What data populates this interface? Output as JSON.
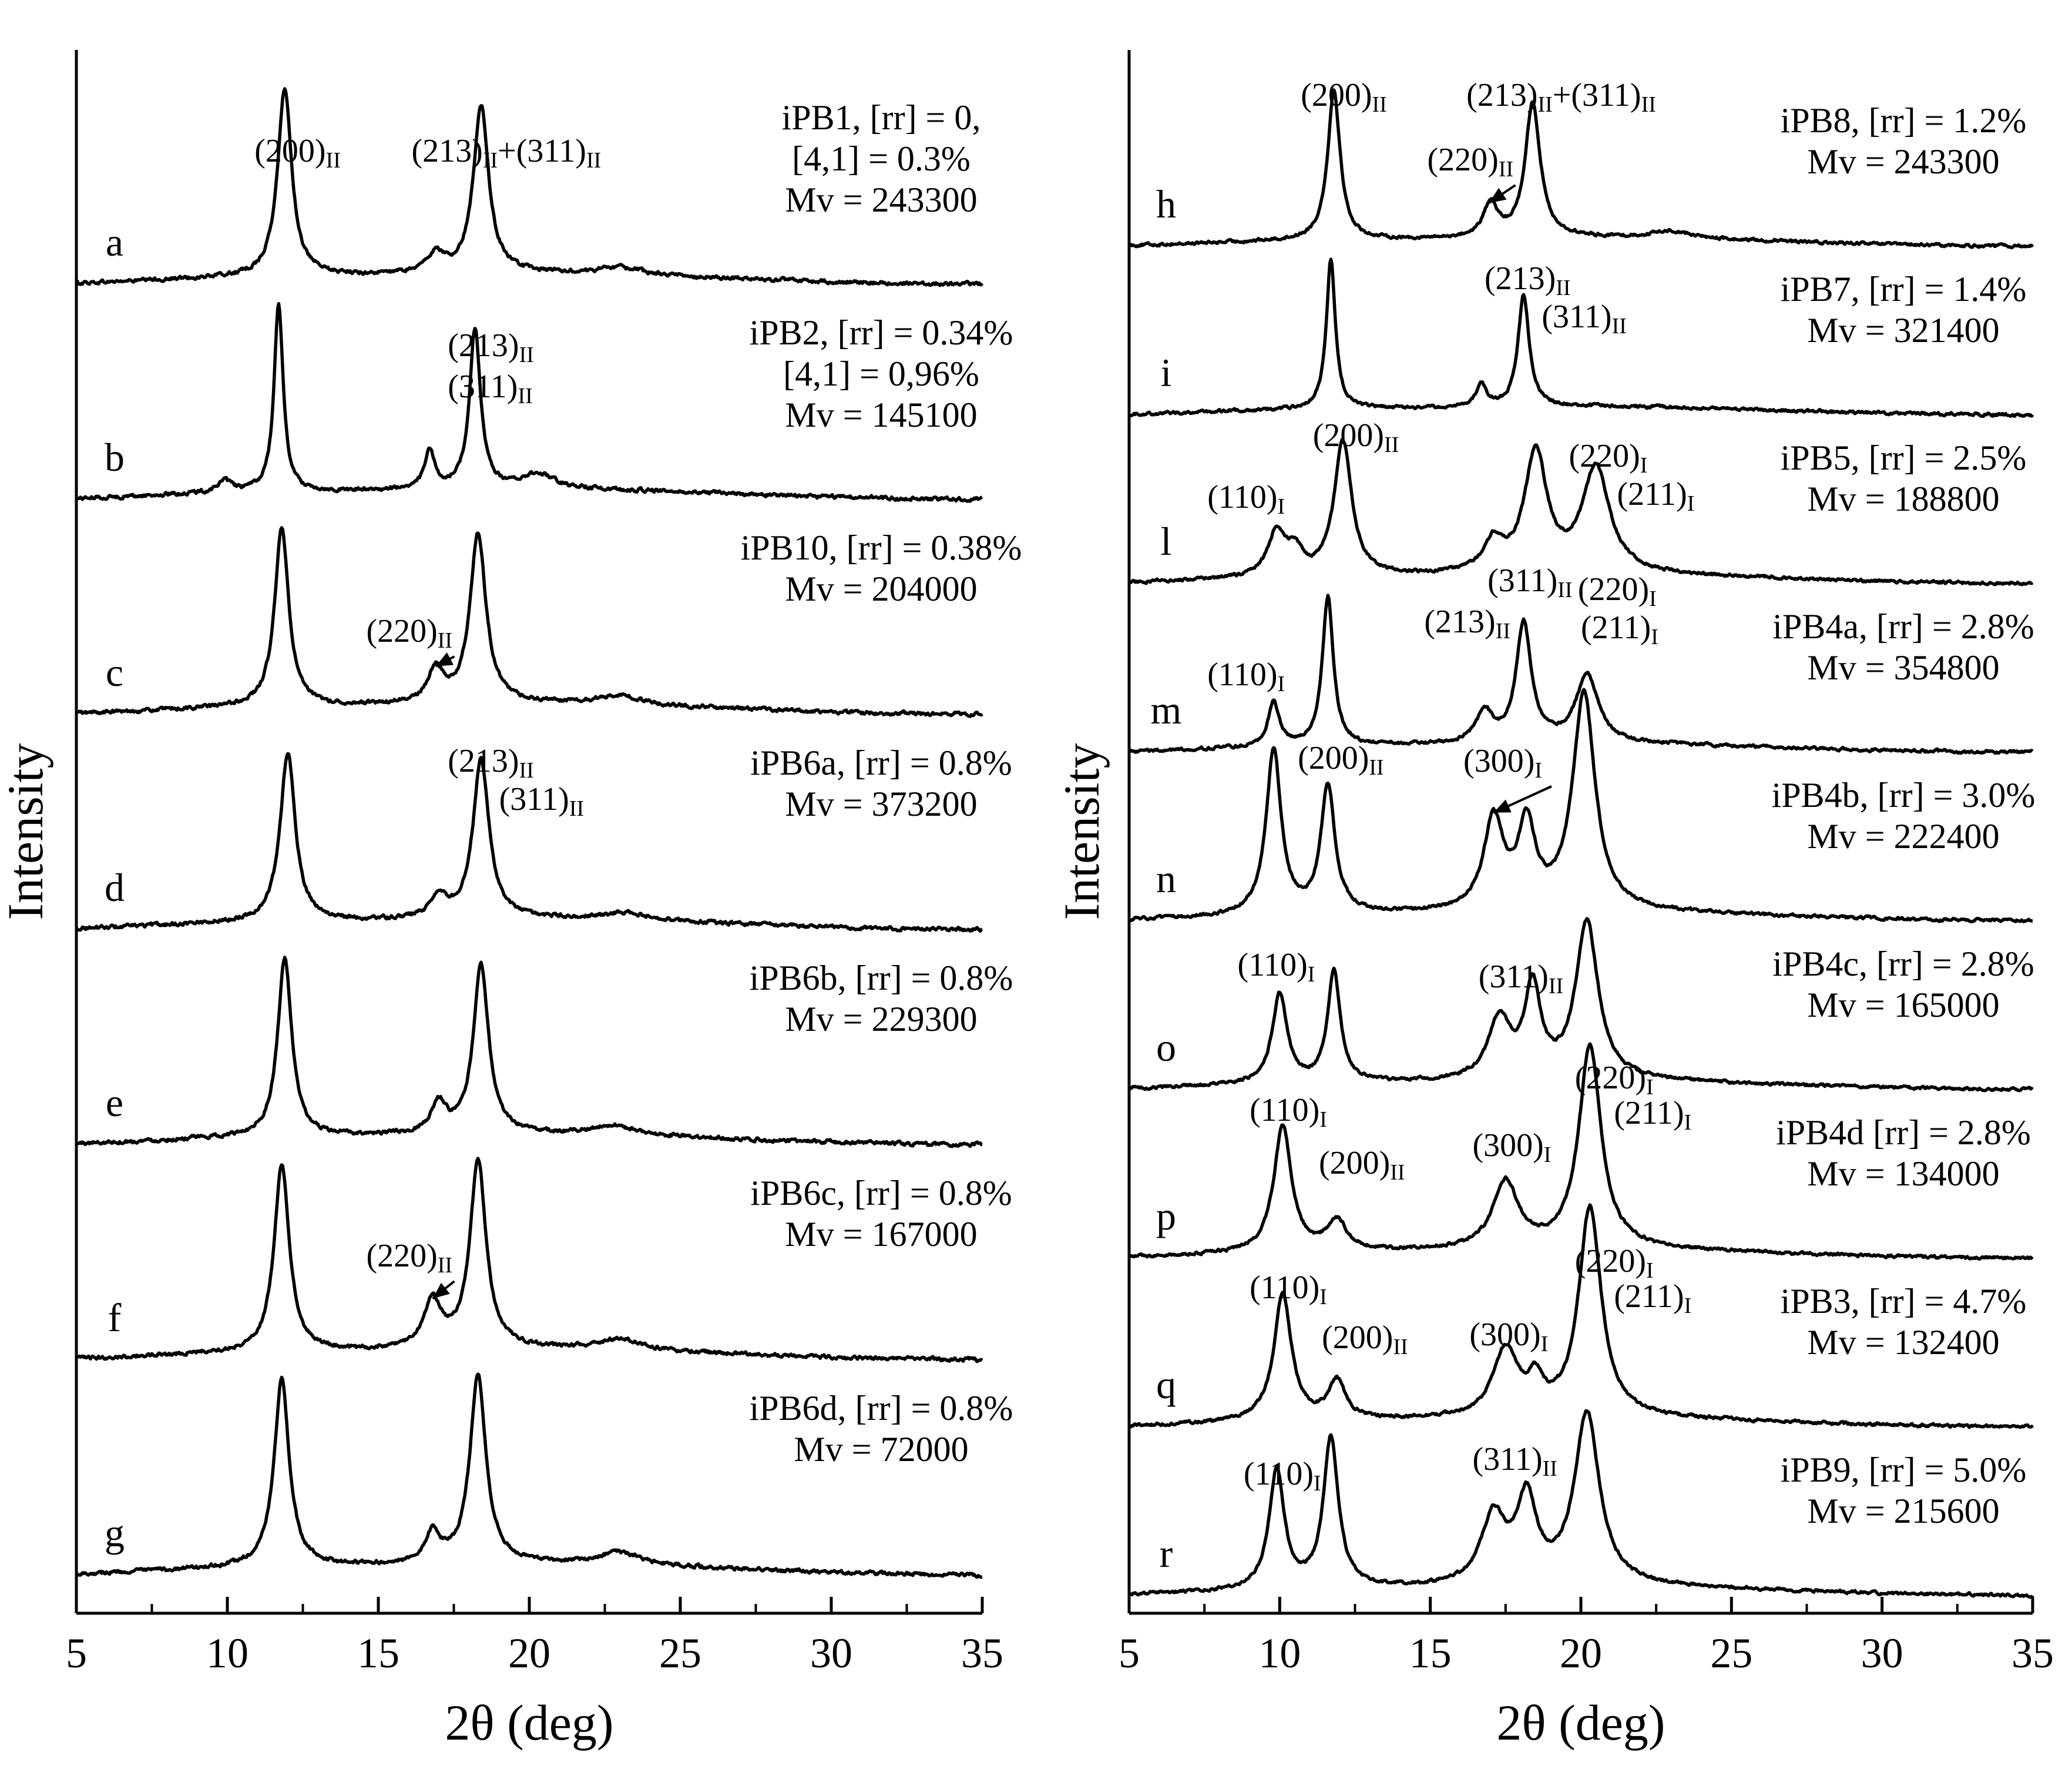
{
  "chart_data": [
    {
      "type": "line",
      "panel": "left",
      "xlabel": "2θ (deg)",
      "ylabel": "Intensity",
      "xlim": [
        5,
        35
      ],
      "xticks": [
        "5",
        "10",
        "15",
        "20",
        "25",
        "30",
        "35"
      ],
      "series": [
        {
          "letter": "a",
          "label": [
            "iPB1, [rr] = 0,",
            "[4,1] = 0.3%",
            "Mv = 243300"
          ],
          "peaks": [
            {
              "x": 11.9,
              "h": 1.0,
              "w": 0.28
            },
            {
              "x": 18.4,
              "h": 0.9,
              "w": 0.3
            },
            {
              "x": 16.9,
              "h": 0.1,
              "w": 0.35
            },
            {
              "x": 23.0,
              "h": 0.04,
              "w": 0.8
            }
          ]
        },
        {
          "letter": "b",
          "label": [
            "iPB2, [rr] = 0.34%",
            "[4,1] = 0,96%",
            "Mv = 145100"
          ],
          "peaks": [
            {
              "x": 11.7,
              "h": 1.0,
              "w": 0.18
            },
            {
              "x": 18.2,
              "h": 0.85,
              "w": 0.22
            },
            {
              "x": 16.7,
              "h": 0.2,
              "w": 0.2
            },
            {
              "x": 9.9,
              "h": 0.06,
              "w": 0.3
            },
            {
              "x": 20.3,
              "h": 0.08,
              "w": 0.6
            }
          ]
        },
        {
          "letter": "c",
          "label": [
            "iPB10, [rr] = 0.38%",
            "Mv = 204000"
          ],
          "peaks": [
            {
              "x": 11.8,
              "h": 0.95,
              "w": 0.28
            },
            {
              "x": 18.3,
              "h": 0.9,
              "w": 0.32
            },
            {
              "x": 16.9,
              "h": 0.18,
              "w": 0.3
            },
            {
              "x": 23.0,
              "h": 0.05,
              "w": 0.8
            }
          ]
        },
        {
          "letter": "d",
          "label": [
            "iPB6a, [rr] = 0.8%",
            "Mv = 373200"
          ],
          "peaks": [
            {
              "x": 12.0,
              "h": 0.9,
              "w": 0.3
            },
            {
              "x": 18.4,
              "h": 0.85,
              "w": 0.32
            },
            {
              "x": 17.0,
              "h": 0.12,
              "w": 0.3
            },
            {
              "x": 23.2,
              "h": 0.04,
              "w": 0.8
            }
          ]
        },
        {
          "letter": "e",
          "label": [
            "iPB6b, [rr] = 0.8%",
            "Mv = 229300"
          ],
          "peaks": [
            {
              "x": 11.9,
              "h": 0.95,
              "w": 0.28
            },
            {
              "x": 18.4,
              "h": 0.9,
              "w": 0.3
            },
            {
              "x": 17.0,
              "h": 0.16,
              "w": 0.3
            },
            {
              "x": 22.8,
              "h": 0.05,
              "w": 0.8
            }
          ]
        },
        {
          "letter": "f",
          "label": [
            "iPB6c, [rr] = 0.8%",
            "Mv = 167000"
          ],
          "peaks": [
            {
              "x": 11.8,
              "h": 1.0,
              "w": 0.3
            },
            {
              "x": 18.3,
              "h": 1.0,
              "w": 0.32
            },
            {
              "x": 16.8,
              "h": 0.25,
              "w": 0.35
            },
            {
              "x": 23.0,
              "h": 0.06,
              "w": 0.8
            }
          ]
        },
        {
          "letter": "g",
          "label": [
            "iPB6d, [rr] = 0.8%",
            "Mv = 72000"
          ],
          "peaks": [
            {
              "x": 11.8,
              "h": 1.0,
              "w": 0.3
            },
            {
              "x": 18.3,
              "h": 1.0,
              "w": 0.32
            },
            {
              "x": 16.8,
              "h": 0.16,
              "w": 0.3
            },
            {
              "x": 23.0,
              "h": 0.07,
              "w": 0.8
            }
          ]
        }
      ],
      "peak_labels": [
        {
          "curve": 0,
          "main": "(200)",
          "sub": "II",
          "x": 10.9,
          "dy": -210
        },
        {
          "curve": 0,
          "main": "(213)",
          "sub": "II",
          "x": 16.1,
          "dy": -210,
          "continuation": {
            "main": "+(311)",
            "sub": "II"
          }
        },
        {
          "curve": 1,
          "main": "(213)",
          "sub": "II",
          "x": 17.3,
          "dy": -245
        },
        {
          "curve": 1,
          "main": "(311)",
          "sub": "II",
          "x": 17.3,
          "dy": -175
        },
        {
          "curve": 2,
          "main": "(220)",
          "sub": "II",
          "x": 14.6,
          "dy": -125,
          "arrow_to_x": 16.9
        },
        {
          "curve": 3,
          "main": "(213)",
          "sub": "II",
          "x": 17.3,
          "dy": -270
        },
        {
          "curve": 3,
          "main": "(311)",
          "sub": "II",
          "x": 19.0,
          "dy": -205
        },
        {
          "curve": 5,
          "main": "(220)",
          "sub": "II",
          "x": 14.6,
          "dy": -160,
          "arrow_to_x": 16.8
        }
      ]
    },
    {
      "type": "line",
      "panel": "right",
      "xlabel": "2θ (deg)",
      "ylabel": "Intensity",
      "xlim": [
        5,
        35
      ],
      "xticks": [
        "5",
        "10",
        "15",
        "20",
        "25",
        "30",
        "35"
      ],
      "series": [
        {
          "letter": "h",
          "label": [
            "iPB8, [rr] = 1.2%",
            "Mv = 243300"
          ],
          "peaks": [
            {
              "x": 11.8,
              "h": 1.0,
              "w": 0.25
            },
            {
              "x": 18.4,
              "h": 0.9,
              "w": 0.3
            },
            {
              "x": 17.0,
              "h": 0.22,
              "w": 0.28
            },
            {
              "x": 23.0,
              "h": 0.05,
              "w": 0.8
            }
          ]
        },
        {
          "letter": "i",
          "label": [
            "iPB7, [rr] = 1.4%",
            "Mv = 321400"
          ],
          "peaks": [
            {
              "x": 11.7,
              "h": 1.0,
              "w": 0.18
            },
            {
              "x": 18.1,
              "h": 0.75,
              "w": 0.22
            },
            {
              "x": 16.7,
              "h": 0.15,
              "w": 0.2
            }
          ]
        },
        {
          "letter": "l",
          "label": [
            "iPB5, [rr] = 2.5%",
            "Mv = 188800"
          ],
          "peaks": [
            {
              "x": 9.9,
              "h": 0.3,
              "w": 0.35
            },
            {
              "x": 12.1,
              "h": 0.9,
              "w": 0.35
            },
            {
              "x": 18.5,
              "h": 0.8,
              "w": 0.45
            },
            {
              "x": 20.5,
              "h": 0.7,
              "w": 0.55
            },
            {
              "x": 17.1,
              "h": 0.2,
              "w": 0.4
            },
            {
              "x": 10.5,
              "h": 0.15,
              "w": 0.3
            }
          ]
        },
        {
          "letter": "m",
          "label": [
            "iPB4a, [rr] = 2.8%",
            "Mv = 354800"
          ],
          "peaks": [
            {
              "x": 9.8,
              "h": 0.3,
              "w": 0.22
            },
            {
              "x": 11.6,
              "h": 1.0,
              "w": 0.22
            },
            {
              "x": 18.1,
              "h": 0.8,
              "w": 0.3
            },
            {
              "x": 20.2,
              "h": 0.45,
              "w": 0.45
            },
            {
              "x": 16.8,
              "h": 0.2,
              "w": 0.35
            }
          ]
        },
        {
          "letter": "n",
          "label": [
            "iPB4b, [rr] = 3.0%",
            "Mv = 222400"
          ],
          "peaks": [
            {
              "x": 9.8,
              "h": 1.1,
              "w": 0.3
            },
            {
              "x": 11.6,
              "h": 0.85,
              "w": 0.28
            },
            {
              "x": 17.1,
              "h": 0.6,
              "w": 0.4
            },
            {
              "x": 18.2,
              "h": 0.55,
              "w": 0.35
            },
            {
              "x": 20.1,
              "h": 1.45,
              "w": 0.45
            }
          ]
        },
        {
          "letter": "o",
          "label": [
            "iPB4c, [rr] = 2.8%",
            "Mv = 165000"
          ],
          "peaks": [
            {
              "x": 10.0,
              "h": 0.6,
              "w": 0.3
            },
            {
              "x": 11.8,
              "h": 0.75,
              "w": 0.25
            },
            {
              "x": 17.3,
              "h": 0.4,
              "w": 0.45
            },
            {
              "x": 18.4,
              "h": 0.6,
              "w": 0.32
            },
            {
              "x": 20.2,
              "h": 1.05,
              "w": 0.45
            }
          ]
        },
        {
          "letter": "p",
          "label": [
            "iPB4d [rr] = 2.8%",
            "Mv = 134000"
          ],
          "peaks": [
            {
              "x": 10.1,
              "h": 0.85,
              "w": 0.35
            },
            {
              "x": 11.9,
              "h": 0.2,
              "w": 0.4
            },
            {
              "x": 17.5,
              "h": 0.45,
              "w": 0.5
            },
            {
              "x": 20.3,
              "h": 1.35,
              "w": 0.45
            }
          ]
        },
        {
          "letter": "q",
          "label": [
            "iPB3, [rr] = 4.7%",
            "Mv = 132400"
          ],
          "peaks": [
            {
              "x": 10.1,
              "h": 0.85,
              "w": 0.35
            },
            {
              "x": 11.9,
              "h": 0.25,
              "w": 0.35
            },
            {
              "x": 17.5,
              "h": 0.45,
              "w": 0.5
            },
            {
              "x": 18.5,
              "h": 0.2,
              "w": 0.3
            },
            {
              "x": 20.3,
              "h": 1.4,
              "w": 0.45
            }
          ]
        },
        {
          "letter": "r",
          "label": [
            "iPB9, [rr] = 5.0%",
            "Mv = 215600"
          ],
          "peaks": [
            {
              "x": 9.9,
              "h": 0.8,
              "w": 0.3
            },
            {
              "x": 11.7,
              "h": 1.0,
              "w": 0.3
            },
            {
              "x": 17.1,
              "h": 0.45,
              "w": 0.5
            },
            {
              "x": 18.2,
              "h": 0.55,
              "w": 0.4
            },
            {
              "x": 20.2,
              "h": 1.15,
              "w": 0.5
            }
          ]
        }
      ],
      "peak_labels": [
        {
          "curve": 0,
          "main": "(200)",
          "sub": "II",
          "x": 10.7,
          "dy": -240
        },
        {
          "curve": 0,
          "main": "(213)",
          "sub": "II",
          "x": 16.2,
          "dy": -240,
          "continuation": {
            "main": "+(311)",
            "sub": "II"
          }
        },
        {
          "curve": 0,
          "main": "(220)",
          "sub": "II",
          "x": 14.9,
          "dy": -130,
          "arrow_to_x": 16.95
        },
        {
          "curve": 1,
          "main": "(213)",
          "sub": "II",
          "x": 16.8,
          "dy": -215
        },
        {
          "curve": 1,
          "main": "(311)",
          "sub": "II",
          "x": 18.7,
          "dy": -150
        },
        {
          "curve": 2,
          "main": "(200)",
          "sub": "II",
          "x": 11.1,
          "dy": -235
        },
        {
          "curve": 2,
          "main": "(110)",
          "sub": "I",
          "x": 7.6,
          "dy": -130
        },
        {
          "curve": 2,
          "main": "(220)",
          "sub": "I",
          "x": 19.6,
          "dy": -200
        },
        {
          "curve": 2,
          "main": "(211)",
          "sub": "I",
          "x": 21.2,
          "dy": -135
        },
        {
          "curve": 3,
          "main": "(311)",
          "sub": "II",
          "x": 16.9,
          "dy": -275
        },
        {
          "curve": 3,
          "main": "(213)",
          "sub": "II",
          "x": 14.8,
          "dy": -205
        },
        {
          "curve": 3,
          "main": "(220)",
          "sub": "I",
          "x": 19.9,
          "dy": -260
        },
        {
          "curve": 3,
          "main": "(211)",
          "sub": "I",
          "x": 20.0,
          "dy": -195
        },
        {
          "curve": 3,
          "main": "(110)",
          "sub": "I",
          "x": 7.6,
          "dy": -115
        },
        {
          "curve": 4,
          "main": "(200)",
          "sub": "II",
          "x": 10.6,
          "dy": -260
        },
        {
          "curve": 4,
          "main": "(300)",
          "sub": "I",
          "x": 16.1,
          "dy": -255,
          "arrow_to_x": 17.1
        },
        {
          "curve": 5,
          "main": "(110)",
          "sub": "I",
          "x": 8.6,
          "dy": -195
        },
        {
          "curve": 5,
          "main": "(311)",
          "sub": "II",
          "x": 16.6,
          "dy": -175
        },
        {
          "curve": 6,
          "main": "(220)",
          "sub": "I",
          "x": 19.8,
          "dy": -290
        },
        {
          "curve": 6,
          "main": "(110)",
          "sub": "I",
          "x": 9.0,
          "dy": -235
        },
        {
          "curve": 6,
          "main": "(211)",
          "sub": "I",
          "x": 21.1,
          "dy": -230
        },
        {
          "curve": 6,
          "main": "(200)",
          "sub": "II",
          "x": 11.3,
          "dy": -145
        },
        {
          "curve": 6,
          "main": "(300)",
          "sub": "I",
          "x": 16.4,
          "dy": -175
        },
        {
          "curve": 7,
          "main": "(220)",
          "sub": "I",
          "x": 19.8,
          "dy": -265
        },
        {
          "curve": 7,
          "main": "(110)",
          "sub": "I",
          "x": 9.0,
          "dy": -220
        },
        {
          "curve": 7,
          "main": "(211)",
          "sub": "I",
          "x": 21.1,
          "dy": -205
        },
        {
          "curve": 7,
          "main": "(200)",
          "sub": "II",
          "x": 11.4,
          "dy": -135
        },
        {
          "curve": 7,
          "main": "(300)",
          "sub": "I",
          "x": 16.3,
          "dy": -140
        },
        {
          "curve": 8,
          "main": "(311)",
          "sub": "II",
          "x": 16.4,
          "dy": -215
        },
        {
          "curve": 8,
          "main": "(110)",
          "sub": "I",
          "x": 8.8,
          "dy": -190
        }
      ]
    }
  ]
}
